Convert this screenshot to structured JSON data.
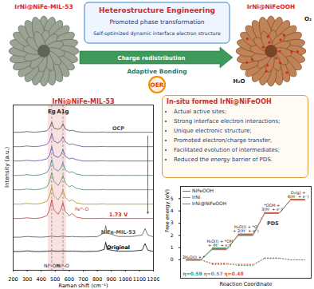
{
  "header": {
    "title": "Heterostructure Engineering",
    "points": [
      "Promoted phase transformation",
      "Self-optimized dynamic interface electron structure"
    ]
  },
  "materials": {
    "left": "IrNi@NiFe-MIL-53",
    "right": "IrNi@NiFeOOH"
  },
  "reaction": {
    "label": "OER",
    "reactant": "H₂O",
    "product": "O₂"
  },
  "mechanism": [
    "Charge redistribution",
    "Adaptive Bonding"
  ],
  "highlights": {
    "title": "In-situ formed IrNi@NiFeOOH",
    "items": [
      "Actual active sites;",
      "Strong interface electron interactions;",
      "Unique electronic structure;",
      "Promoted electron/charge transfer;",
      "Facilitated evolution of intermediates;",
      "Reduced the energy barrier of PDS."
    ]
  },
  "chart_data": [
    {
      "type": "line",
      "title": "IrNi@NiFe-MIL-53",
      "x_label": "Raman shift (cm⁻¹)",
      "y_label": "Intensity (a.u.)",
      "x": [
        200,
        250,
        300,
        350,
        400,
        440,
        460,
        475,
        490,
        520,
        540,
        555,
        570,
        600,
        620,
        650,
        700,
        800,
        850,
        860,
        870,
        950,
        1050,
        1120,
        1140,
        1160,
        1200
      ],
      "series": [
        {
          "name": "OCP",
          "color": "#4a4a4a",
          "values": [
            8.6,
            8.6,
            8.65,
            8.6,
            8.65,
            8.7,
            8.9,
            9.3,
            8.9,
            8.8,
            8.9,
            9.2,
            8.85,
            8.7,
            8.75,
            8.65,
            8.6,
            8.6,
            8.62,
            8.6,
            8.6,
            8.6,
            8.6,
            8.6,
            8.6,
            8.6,
            8.6
          ]
        },
        {
          "name": null,
          "color": "#6b4c9a",
          "values": [
            7.6,
            7.6,
            7.65,
            7.6,
            7.65,
            7.75,
            8.0,
            8.5,
            8.0,
            7.85,
            8.0,
            8.3,
            7.95,
            7.75,
            7.8,
            7.7,
            7.6,
            7.6,
            7.62,
            7.6,
            7.6,
            7.6,
            7.6,
            7.6,
            7.6,
            7.6,
            7.6
          ]
        },
        {
          "name": null,
          "color": "#3b5ba9",
          "values": [
            6.6,
            6.6,
            6.65,
            6.6,
            6.65,
            6.75,
            7.0,
            7.6,
            7.0,
            6.85,
            7.0,
            7.4,
            6.95,
            6.75,
            6.8,
            6.7,
            6.6,
            6.6,
            6.62,
            6.6,
            6.6,
            6.6,
            6.6,
            6.6,
            6.6,
            6.6,
            6.6
          ]
        },
        {
          "name": null,
          "color": "#2c8c99",
          "values": [
            5.6,
            5.6,
            5.65,
            5.6,
            5.65,
            5.8,
            6.1,
            6.7,
            6.1,
            5.9,
            6.1,
            6.5,
            6.0,
            5.8,
            5.85,
            5.7,
            5.6,
            5.6,
            5.62,
            5.6,
            5.6,
            5.6,
            5.6,
            5.6,
            5.6,
            5.6,
            5.6
          ]
        },
        {
          "name": null,
          "color": "#3f9a4f",
          "values": [
            4.6,
            4.6,
            4.65,
            4.6,
            4.65,
            4.8,
            5.2,
            5.8,
            5.2,
            4.9,
            5.2,
            5.6,
            5.1,
            4.8,
            4.9,
            4.7,
            4.6,
            4.6,
            4.62,
            4.6,
            4.6,
            4.6,
            4.6,
            4.6,
            4.6,
            4.6,
            4.6
          ]
        },
        {
          "name": null,
          "color": "#b08a1e",
          "values": [
            3.6,
            3.6,
            3.65,
            3.6,
            3.65,
            3.8,
            4.2,
            4.8,
            4.2,
            3.9,
            4.2,
            4.6,
            4.1,
            3.8,
            3.9,
            3.7,
            3.6,
            3.6,
            3.62,
            3.6,
            3.6,
            3.6,
            3.6,
            3.6,
            3.6,
            3.6,
            3.6
          ]
        },
        {
          "name": "1.73 V",
          "color": "#c0392b",
          "values": [
            2.6,
            2.6,
            2.65,
            2.6,
            2.65,
            2.8,
            3.2,
            3.9,
            3.2,
            2.9,
            3.2,
            3.7,
            3.1,
            2.8,
            2.95,
            2.7,
            2.6,
            2.6,
            2.62,
            2.6,
            2.6,
            2.6,
            2.6,
            2.6,
            2.6,
            2.6,
            2.6
          ]
        },
        {
          "name": "NiFe-MIL-53",
          "color": "#555555",
          "values": [
            1.3,
            1.3,
            1.35,
            1.32,
            1.3,
            1.33,
            1.35,
            1.38,
            1.35,
            1.33,
            1.36,
            1.38,
            1.35,
            1.33,
            1.35,
            1.33,
            1.32,
            1.34,
            1.6,
            2.1,
            1.6,
            1.35,
            1.35,
            1.45,
            1.9,
            1.45,
            1.32
          ]
        },
        {
          "name": "Original",
          "color": "#000000",
          "values": [
            0.3,
            0.3,
            0.35,
            0.3,
            0.3,
            0.32,
            0.33,
            0.35,
            0.33,
            0.32,
            0.33,
            0.34,
            0.33,
            0.32,
            0.33,
            0.32,
            0.3,
            0.32,
            0.45,
            0.95,
            0.45,
            0.32,
            0.33,
            0.4,
            0.85,
            0.4,
            0.3
          ]
        }
      ],
      "xlim": [
        200,
        1200
      ],
      "xticks": [
        200,
        300,
        400,
        500,
        600,
        700,
        800,
        900,
        1000,
        1100,
        1200
      ],
      "ylim": [
        -1,
        10.5
      ],
      "tick_labels": "x",
      "shaded_band": [
        450,
        580
      ],
      "peaks": [
        {
          "x": 475,
          "label": "Eg",
          "bottom_label": "Niᴵᴵ-OH"
        },
        {
          "x": 555,
          "label": "A1g",
          "bottom_label": "Niᴵᴵ-O"
        }
      ],
      "annotations": [
        {
          "text": "Feᴵᴵᴵ-O",
          "x": 640,
          "y": 3.25
        }
      ],
      "arrow": {
        "from": "OCP",
        "to": "1.73 V"
      }
    },
    {
      "type": "line",
      "x_label": "Reaction Coordinate",
      "y_label": "Free energy (eV)",
      "categories": [
        "2H₂O(l) + *",
        "H₂O(l) + *OH\n+ (H⁺ + e⁻)",
        "H₂O(l) + *O\n+ 2(H⁺ + e⁻)",
        "*OOH +\n3(H⁺ + e⁻)",
        "O₂(g) +\n4(H⁺ + e⁻)"
      ],
      "series": [
        {
          "name": "NiFeOOH",
          "color": "#2e9b74",
          "values": [
            0,
            0.95,
            2.0,
            3.82,
            4.92
          ],
          "dashed_values": [
            0,
            -0.28,
            -0.46,
            0.13,
            0
          ],
          "overpotential_label": "η=0.59"
        },
        {
          "name": "IrNi",
          "color": "#8c8c8c",
          "values": [
            0,
            0.85,
            2.05,
            3.85,
            4.92
          ],
          "dashed_values": [
            0,
            -0.38,
            -0.41,
            0.16,
            0
          ],
          "overpotential_label": "η=0.57"
        },
        {
          "name": "IrNi@NiFeOOH",
          "color": "#e4572e",
          "values": [
            0,
            0.9,
            2.1,
            3.81,
            4.92
          ],
          "dashed_values": [
            0,
            -0.33,
            -0.36,
            0.12,
            0
          ],
          "overpotential_label": "η=0.48"
        }
      ],
      "ylim": [
        -1.5,
        6
      ],
      "yticks": [
        0,
        1,
        2,
        3,
        4,
        5
      ],
      "tick_labels": "y",
      "legend": "top-left",
      "annotations": [
        {
          "text": "PDS",
          "step": 3
        }
      ]
    }
  ]
}
